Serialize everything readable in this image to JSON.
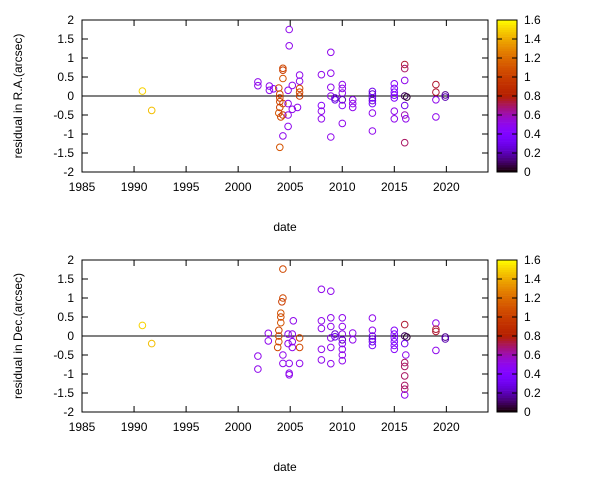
{
  "chart_data": [
    {
      "type": "scatter",
      "xlabel": "date",
      "ylabel": "residual in R.A.(arcsec)",
      "xlim": [
        1985,
        2024
      ],
      "ylim": [
        -2,
        2
      ],
      "xticks": [
        1985,
        1990,
        1995,
        2000,
        2005,
        2010,
        2015,
        2020
      ],
      "yticks": [
        -2,
        -1.5,
        -1,
        -0.5,
        0,
        0.5,
        1,
        1.5,
        2
      ],
      "zero_line": true,
      "colorbar": {
        "range": [
          0,
          1.6
        ],
        "ticks": [
          0,
          0.2,
          0.4,
          0.6,
          0.8,
          1,
          1.2,
          1.4,
          1.6
        ],
        "palette": "black-purple-red-yellow"
      },
      "points_format": [
        "date",
        "residual",
        "color_value"
      ],
      "points": [
        [
          1990.8,
          0.13,
          1.5
        ],
        [
          1991.7,
          -0.38,
          1.45
        ],
        [
          2001.9,
          0.37,
          0.5
        ],
        [
          2001.9,
          0.27,
          0.5
        ],
        [
          2003.0,
          0.26,
          0.5
        ],
        [
          2003.0,
          0.15,
          0.5
        ],
        [
          2003.4,
          0.19,
          0.45
        ],
        [
          2003.9,
          0.21,
          1.05
        ],
        [
          2004.0,
          0.05,
          1.05
        ],
        [
          2004.0,
          -0.05,
          1.0
        ],
        [
          2004.0,
          -0.15,
          1.05
        ],
        [
          2004.0,
          -0.3,
          1.0
        ],
        [
          2003.9,
          -0.45,
          1.1
        ],
        [
          2004.1,
          -0.55,
          1.05
        ],
        [
          2004.0,
          -1.35,
          1.1
        ],
        [
          2004.3,
          0.73,
          1.05
        ],
        [
          2004.3,
          0.68,
          1.0
        ],
        [
          2004.3,
          0.46,
          1.1
        ],
        [
          2004.3,
          -0.2,
          1.05
        ],
        [
          2004.3,
          -0.5,
          1.0
        ],
        [
          2004.3,
          -1.05,
          0.5
        ],
        [
          2004.9,
          1.75,
          0.5
        ],
        [
          2004.9,
          1.32,
          0.5
        ],
        [
          2004.8,
          0.15,
          0.5
        ],
        [
          2004.8,
          -0.2,
          0.5
        ],
        [
          2004.8,
          -0.5,
          0.5
        ],
        [
          2004.8,
          -0.8,
          0.5
        ],
        [
          2005.2,
          0.28,
          0.5
        ],
        [
          2005.2,
          -0.35,
          0.5
        ],
        [
          2005.9,
          0.55,
          0.5
        ],
        [
          2005.9,
          0.39,
          0.5
        ],
        [
          2005.9,
          0.2,
          1.05
        ],
        [
          2005.9,
          0.1,
          1.05
        ],
        [
          2005.9,
          0.0,
          1.0
        ],
        [
          2005.7,
          -0.3,
          0.5
        ],
        [
          2008.0,
          0.56,
          0.5
        ],
        [
          2008.0,
          -0.25,
          0.45
        ],
        [
          2008.0,
          -0.4,
          0.5
        ],
        [
          2008.0,
          -0.6,
          0.5
        ],
        [
          2008.9,
          1.15,
          0.5
        ],
        [
          2008.9,
          0.6,
          0.5
        ],
        [
          2008.9,
          0.23,
          0.5
        ],
        [
          2008.9,
          0.0,
          0.5
        ],
        [
          2008.9,
          -1.08,
          0.5
        ],
        [
          2009.3,
          -0.05,
          0.25
        ],
        [
          2009.3,
          -0.1,
          0.3
        ],
        [
          2010.0,
          0.3,
          0.5
        ],
        [
          2010.0,
          0.2,
          0.5
        ],
        [
          2010.0,
          0.08,
          0.5
        ],
        [
          2010.0,
          -0.1,
          0.2
        ],
        [
          2010.0,
          -0.25,
          0.45
        ],
        [
          2010.0,
          -0.72,
          0.5
        ],
        [
          2011.0,
          -0.1,
          0.5
        ],
        [
          2011.0,
          -0.2,
          0.5
        ],
        [
          2011.0,
          -0.3,
          0.5
        ],
        [
          2012.9,
          0.12,
          0.3
        ],
        [
          2012.9,
          0.05,
          0.25
        ],
        [
          2012.9,
          -0.05,
          0.3
        ],
        [
          2012.9,
          -0.12,
          0.25
        ],
        [
          2012.9,
          -0.2,
          0.35
        ],
        [
          2012.9,
          -0.45,
          0.5
        ],
        [
          2012.9,
          -0.92,
          0.5
        ],
        [
          2015.0,
          0.32,
          0.45
        ],
        [
          2015.0,
          0.2,
          0.4
        ],
        [
          2015.0,
          0.1,
          0.4
        ],
        [
          2015.0,
          0.02,
          0.4
        ],
        [
          2015.0,
          -0.05,
          0.4
        ],
        [
          2015.0,
          -0.4,
          0.5
        ],
        [
          2015.0,
          -0.6,
          0.5
        ],
        [
          2016.0,
          0.83,
          0.75
        ],
        [
          2016.0,
          0.72,
          0.7
        ],
        [
          2016.0,
          0.41,
          0.5
        ],
        [
          2016.0,
          0.0,
          0.1
        ],
        [
          2016.2,
          -0.03,
          0.05
        ],
        [
          2016.0,
          -0.25,
          0.3
        ],
        [
          2016.0,
          -0.5,
          0.6
        ],
        [
          2016.1,
          -0.6,
          0.5
        ],
        [
          2016.0,
          -1.23,
          0.7
        ],
        [
          2019.0,
          0.3,
          0.75
        ],
        [
          2019.0,
          0.1,
          0.75
        ],
        [
          2019.0,
          -0.1,
          0.5
        ],
        [
          2019.0,
          -0.55,
          0.5
        ],
        [
          2019.9,
          0.03,
          0.15
        ],
        [
          2019.9,
          -0.03,
          0.2
        ]
      ]
    },
    {
      "type": "scatter",
      "xlabel": "date",
      "ylabel": "residual in Dec.(arcsec)",
      "xlim": [
        1985,
        2024
      ],
      "ylim": [
        -2,
        2
      ],
      "xticks": [
        1985,
        1990,
        1995,
        2000,
        2005,
        2010,
        2015,
        2020
      ],
      "yticks": [
        -2,
        -1.5,
        -1,
        -0.5,
        0,
        0.5,
        1,
        1.5,
        2
      ],
      "zero_line": true,
      "colorbar": {
        "range": [
          0,
          1.6
        ],
        "ticks": [
          0,
          0.2,
          0.4,
          0.6,
          0.8,
          1,
          1.2,
          1.4,
          1.6
        ],
        "palette": "black-purple-red-yellow"
      },
      "points_format": [
        "date",
        "residual",
        "color_value"
      ],
      "points": [
        [
          1990.8,
          0.28,
          1.5
        ],
        [
          1991.7,
          -0.2,
          1.45
        ],
        [
          2001.9,
          -0.53,
          0.5
        ],
        [
          2001.9,
          -0.87,
          0.5
        ],
        [
          2002.9,
          0.07,
          0.5
        ],
        [
          2002.9,
          -0.13,
          0.5
        ],
        [
          2004.3,
          1.76,
          1.05
        ],
        [
          2004.3,
          1.0,
          1.05
        ],
        [
          2004.2,
          0.9,
          1.0
        ],
        [
          2004.1,
          0.6,
          1.1
        ],
        [
          2004.1,
          0.5,
          1.05
        ],
        [
          2004.1,
          0.35,
          1.1
        ],
        [
          2003.9,
          0.15,
          1.05
        ],
        [
          2003.9,
          0.0,
          1.0
        ],
        [
          2003.9,
          -0.15,
          1.1
        ],
        [
          2003.8,
          -0.3,
          1.05
        ],
        [
          2004.3,
          -0.5,
          0.5
        ],
        [
          2004.3,
          -0.72,
          0.5
        ],
        [
          2004.9,
          -0.72,
          0.5
        ],
        [
          2004.9,
          -0.98,
          0.5
        ],
        [
          2004.9,
          -1.02,
          0.5
        ],
        [
          2004.8,
          0.05,
          0.5
        ],
        [
          2004.8,
          -0.2,
          0.5
        ],
        [
          2005.3,
          0.4,
          0.5
        ],
        [
          2005.2,
          0.05,
          0.5
        ],
        [
          2005.2,
          -0.15,
          0.5
        ],
        [
          2005.2,
          -0.3,
          0.5
        ],
        [
          2005.9,
          -0.05,
          1.05
        ],
        [
          2005.9,
          -0.3,
          1.05
        ],
        [
          2005.9,
          -0.72,
          0.5
        ],
        [
          2008.0,
          1.23,
          0.5
        ],
        [
          2008.0,
          0.4,
          0.5
        ],
        [
          2008.0,
          0.2,
          0.5
        ],
        [
          2008.0,
          -0.35,
          0.5
        ],
        [
          2008.0,
          -0.63,
          0.5
        ],
        [
          2008.9,
          1.18,
          0.5
        ],
        [
          2008.9,
          0.48,
          0.5
        ],
        [
          2008.9,
          0.25,
          0.5
        ],
        [
          2008.9,
          -0.05,
          0.5
        ],
        [
          2008.9,
          -0.3,
          0.5
        ],
        [
          2008.9,
          -0.73,
          0.5
        ],
        [
          2009.3,
          0.05,
          0.25
        ],
        [
          2009.3,
          -0.02,
          0.3
        ],
        [
          2010.0,
          0.48,
          0.5
        ],
        [
          2010.0,
          0.25,
          0.5
        ],
        [
          2010.0,
          0.05,
          0.5
        ],
        [
          2010.0,
          -0.1,
          0.2
        ],
        [
          2010.0,
          -0.2,
          0.45
        ],
        [
          2010.0,
          -0.35,
          0.5
        ],
        [
          2010.0,
          -0.5,
          0.5
        ],
        [
          2010.0,
          -0.65,
          0.5
        ],
        [
          2011.0,
          0.08,
          0.5
        ],
        [
          2011.0,
          -0.1,
          0.5
        ],
        [
          2012.9,
          0.47,
          0.5
        ],
        [
          2012.9,
          0.15,
          0.5
        ],
        [
          2012.9,
          0.0,
          0.3
        ],
        [
          2012.9,
          -0.08,
          0.25
        ],
        [
          2012.9,
          -0.15,
          0.3
        ],
        [
          2012.9,
          -0.25,
          0.35
        ],
        [
          2015.0,
          0.15,
          0.45
        ],
        [
          2015.0,
          0.05,
          0.4
        ],
        [
          2015.0,
          -0.05,
          0.4
        ],
        [
          2015.0,
          -0.15,
          0.4
        ],
        [
          2015.0,
          -0.25,
          0.4
        ],
        [
          2015.0,
          -0.35,
          0.45
        ],
        [
          2016.0,
          0.3,
          0.75
        ],
        [
          2016.0,
          0.0,
          0.1
        ],
        [
          2016.2,
          -0.03,
          0.05
        ],
        [
          2016.0,
          -0.2,
          0.3
        ],
        [
          2016.1,
          -0.5,
          0.5
        ],
        [
          2016.0,
          -0.7,
          0.7
        ],
        [
          2016.0,
          -0.8,
          0.7
        ],
        [
          2016.0,
          -1.05,
          0.7
        ],
        [
          2016.0,
          -1.3,
          0.7
        ],
        [
          2016.0,
          -1.4,
          0.7
        ],
        [
          2016.0,
          -1.55,
          0.5
        ],
        [
          2019.0,
          0.34,
          0.5
        ],
        [
          2019.0,
          0.18,
          0.75
        ],
        [
          2019.0,
          0.12,
          0.75
        ],
        [
          2019.0,
          -0.38,
          0.5
        ],
        [
          2019.9,
          -0.03,
          0.15
        ],
        [
          2019.9,
          -0.08,
          0.2
        ]
      ]
    }
  ]
}
